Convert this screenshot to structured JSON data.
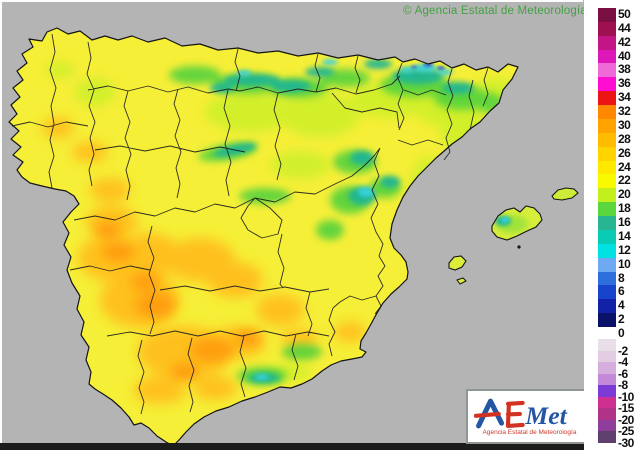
{
  "map": {
    "region_name": "Spain with Balearic Islands",
    "copyright": "© Agencia Estatal de Meteorología",
    "sea_color": "#b4b4b4",
    "land_base_color": "#f6ef38",
    "border_color": "#1c1c1c"
  },
  "logo": {
    "part_a": "A",
    "part_e": "E",
    "part_met": "Met",
    "subtitle": "Agencia Estatal de Meteorología",
    "blue": "#2456a4",
    "red": "#d23222"
  },
  "colorbar": {
    "positive": {
      "labels": [
        "50",
        "44",
        "42",
        "40",
        "38",
        "36",
        "34",
        "32",
        "30",
        "28",
        "26",
        "24",
        "22",
        "20",
        "18",
        "16",
        "14",
        "12",
        "10",
        "8",
        "6",
        "4",
        "2",
        "0"
      ],
      "colors": [
        "#7a1041",
        "#9e1050",
        "#c31585",
        "#dd17b8",
        "#ef6ad6",
        "#ff0ed2",
        "#ec1515",
        "#ff8800",
        "#ffa300",
        "#ffbc00",
        "#ffd400",
        "#ffe900",
        "#f9f900",
        "#c3ef1d",
        "#5cd63d",
        "#27b691",
        "#0accb4",
        "#00e1e1",
        "#6fa9f2",
        "#2f6fdd",
        "#1843cd",
        "#1122a6",
        "#0a1168"
      ]
    },
    "negative": {
      "labels": [
        "-2",
        "-4",
        "-6",
        "-8",
        "-10",
        "-15",
        "-20",
        "-25",
        "-30"
      ],
      "colors": [
        "#e9dfe8",
        "#e2cce2",
        "#d6aedd",
        "#c488d8",
        "#7b3bd4",
        "#cd3090",
        "#b03387",
        "#8d3f9b",
        "#5e3f6e"
      ]
    }
  }
}
